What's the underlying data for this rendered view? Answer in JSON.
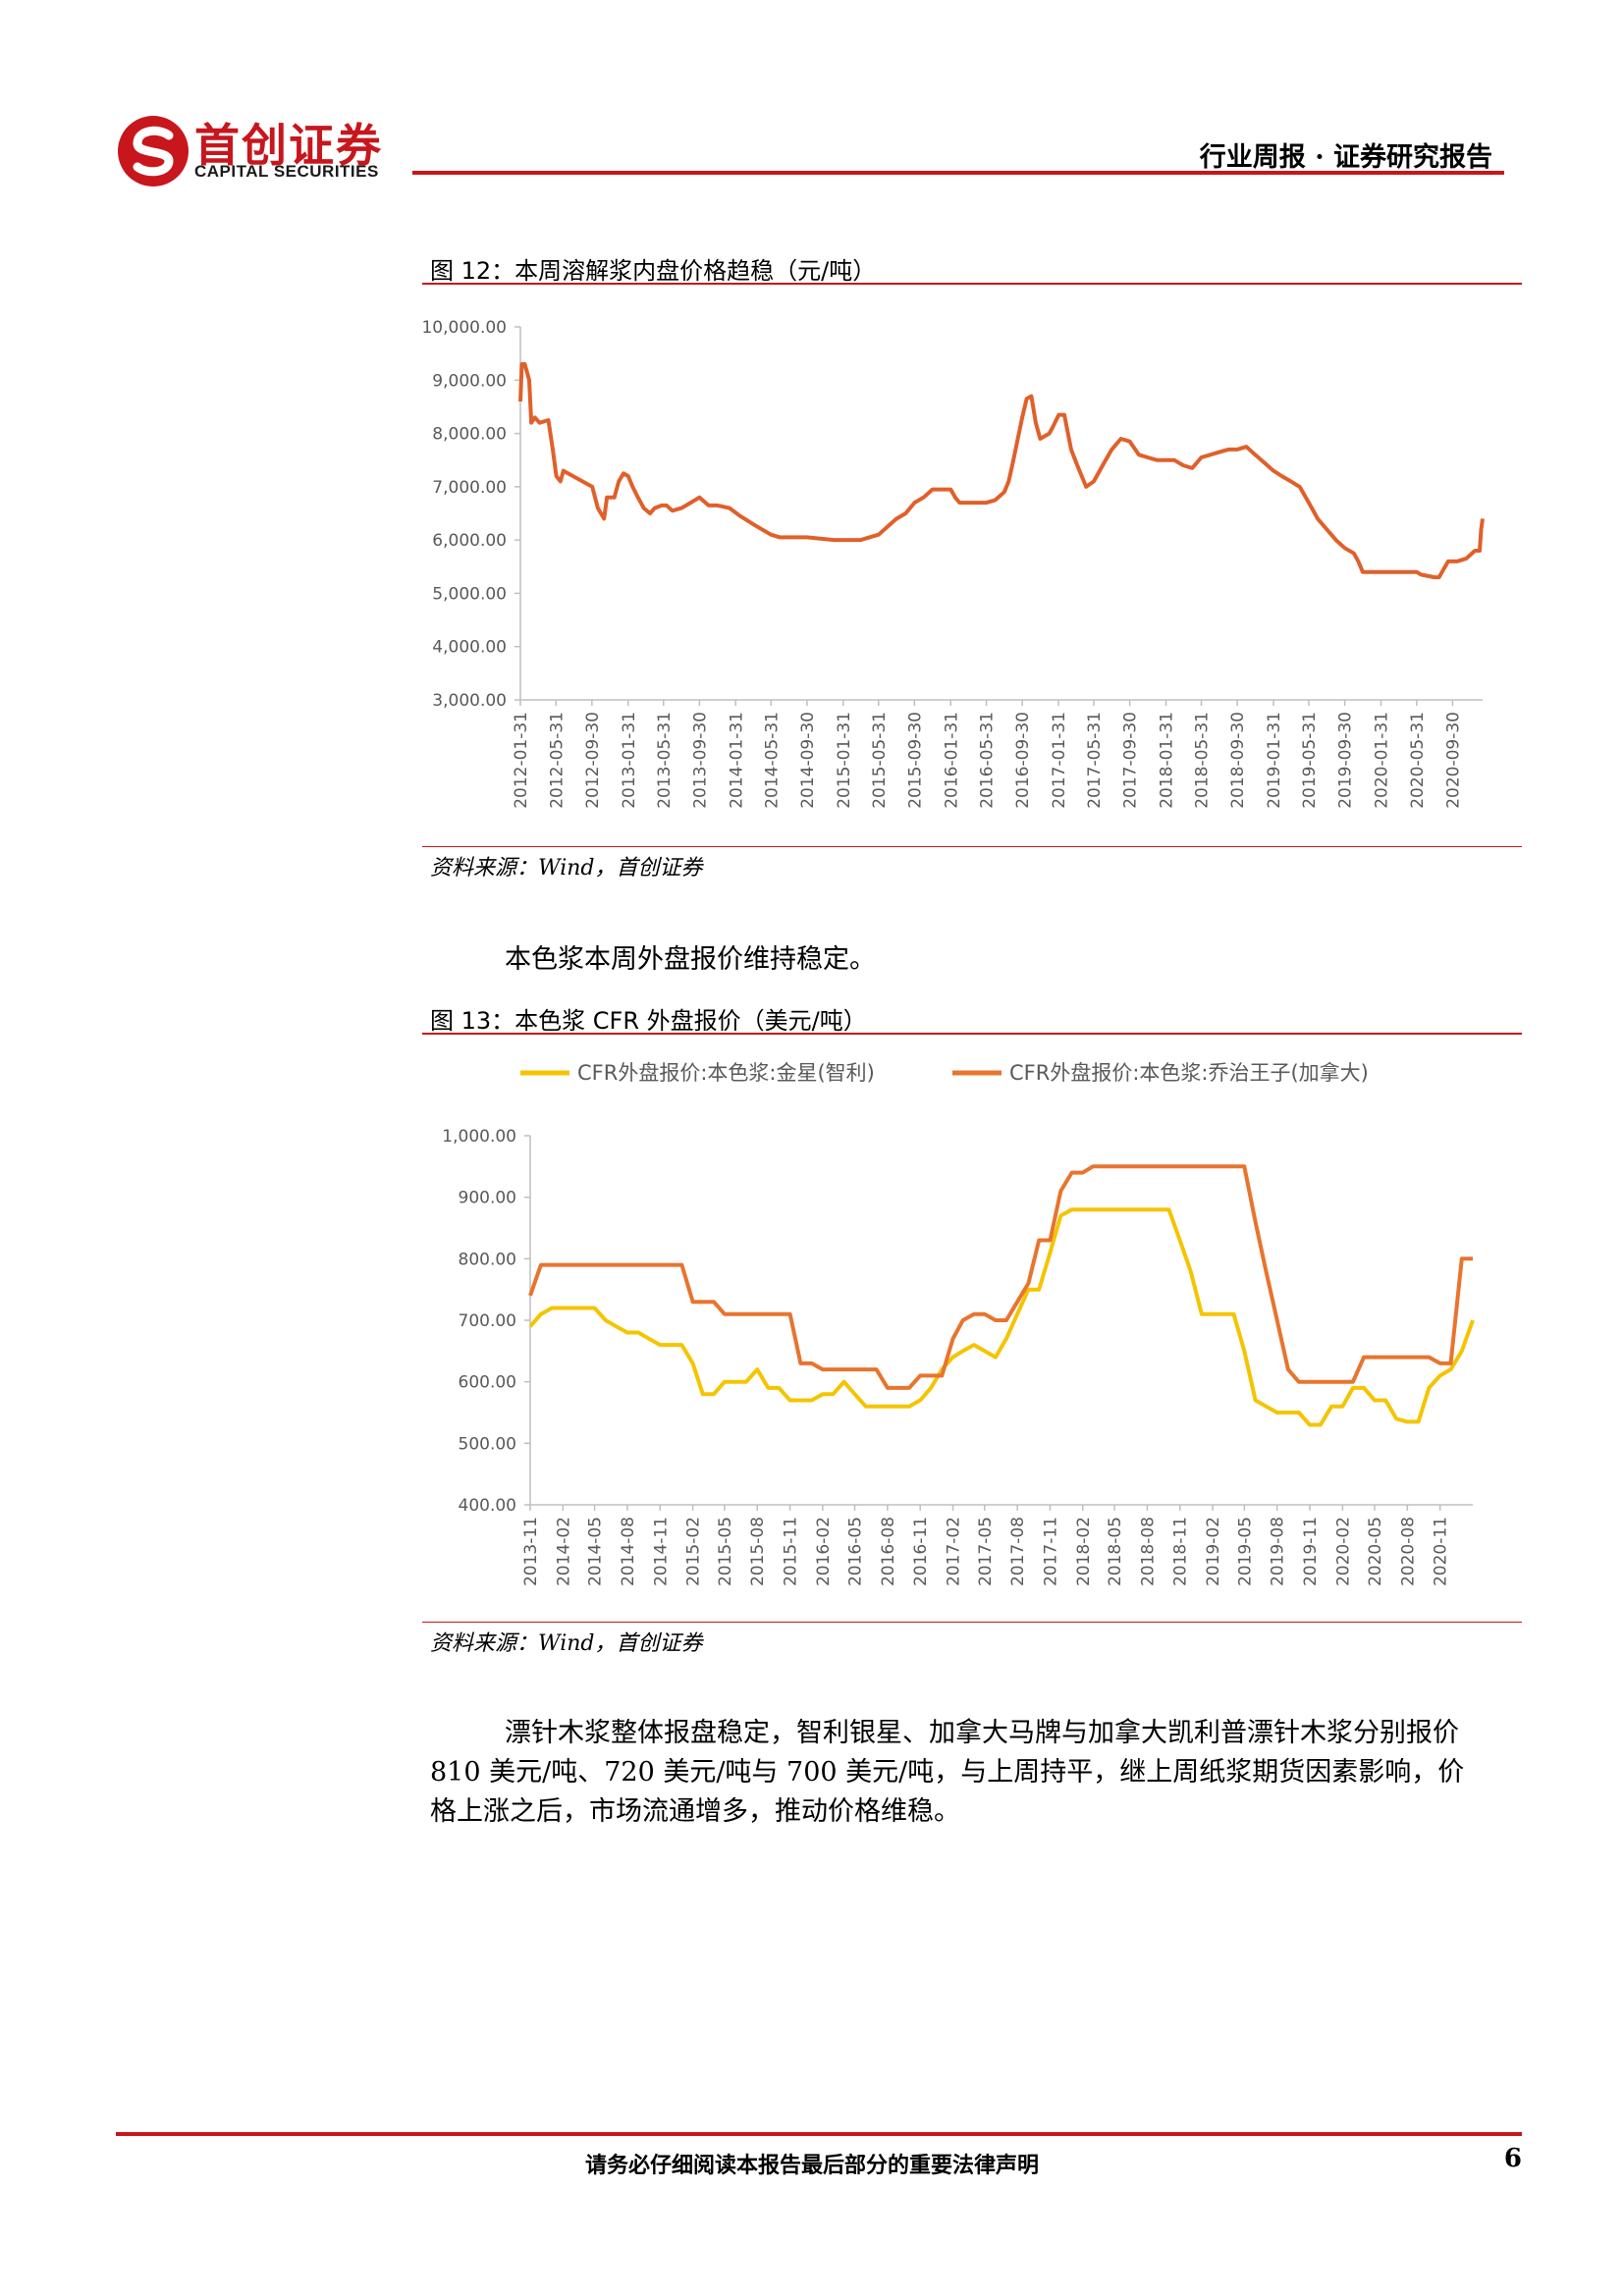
{
  "header": {
    "brand_cn": "首创证券",
    "brand_en": "CAPITAL SECURITIES",
    "report_type": "行业周报 · 证券研究报告",
    "brand_color": "#c8161d"
  },
  "figure12": {
    "title": "图 12：本周溶解浆内盘价格趋稳（元/吨）",
    "source": "资料来源：Wind，首创证券"
  },
  "text1": "本色浆本周外盘报价维持稳定。",
  "figure13": {
    "title": "图 13：本色浆 CFR 外盘报价（美元/吨）",
    "source": "资料来源：Wind，首创证券"
  },
  "paragraph": {
    "line1": "漂针木浆整体报盘稳定，智利银星、加拿大马牌与加拿大凯利普漂针木浆分别报价",
    "line2": "810 美元/吨、720 美元/吨与 700 美元/吨，与上周持平，继上周纸浆期货因素影响，价",
    "line3": "格上涨之后，市场流通增多，推动价格维稳。"
  },
  "footer": {
    "disclaimer": "请务必仔细阅读本报告最后部分的重要法律声明",
    "page": "6"
  },
  "chart_data": [
    {
      "type": "line",
      "title": "",
      "color": "#e0602a",
      "ylim": [
        3000,
        10000
      ],
      "yticks": [
        "10,000.00",
        "9,000.00",
        "8,000.00",
        "7,000.00",
        "6,000.00",
        "5,000.00",
        "4,000.00",
        "3,000.00"
      ],
      "xticks": [
        "2012-01-31",
        "2012-05-31",
        "2012-09-30",
        "2013-01-31",
        "2013-05-31",
        "2013-09-30",
        "2014-01-31",
        "2014-05-31",
        "2014-09-30",
        "2015-01-31",
        "2015-05-31",
        "2015-09-30",
        "2016-01-31",
        "2016-05-31",
        "2016-09-30",
        "2017-01-31",
        "2017-05-31",
        "2017-09-30",
        "2018-01-31",
        "2018-05-31",
        "2018-09-30",
        "2019-01-31",
        "2019-05-31",
        "2019-09-30",
        "2020-01-31",
        "2020-05-31",
        "2020-09-30"
      ],
      "xrange": [
        "2012-01-31",
        "2021-01-10"
      ],
      "series": [
        {
          "x": [
            "2012-01-31",
            "2012-02-05",
            "2012-02-15",
            "2012-03-01",
            "2012-03-08",
            "2012-03-20",
            "2012-04-05",
            "2012-05-05",
            "2012-05-20",
            "2012-06-01",
            "2012-06-15",
            "2012-06-25",
            "2012-10-01",
            "2012-10-20",
            "2012-11-10",
            "2012-11-20",
            "2012-12-15",
            "2012-12-30",
            "2013-01-15",
            "2013-01-31",
            "2013-02-15",
            "2013-03-05",
            "2013-03-25",
            "2013-04-15",
            "2013-05-01",
            "2013-05-25",
            "2013-06-10",
            "2013-06-30",
            "2013-07-31",
            "2013-08-31",
            "2013-09-30",
            "2013-10-31",
            "2013-11-15",
            "2013-11-30",
            "2014-01-10",
            "2014-02-15",
            "2014-03-31",
            "2014-04-30",
            "2014-05-31",
            "2014-06-30",
            "2014-07-31",
            "2014-08-31",
            "2014-09-30",
            "2014-12-31",
            "2015-03-31",
            "2015-04-30",
            "2015-05-31",
            "2015-06-30",
            "2015-07-31",
            "2015-08-31",
            "2015-09-30",
            "2015-10-31",
            "2015-11-30",
            "2016-01-31",
            "2016-02-15",
            "2016-03-01",
            "2016-04-30",
            "2016-05-31",
            "2016-06-30",
            "2016-07-31",
            "2016-08-15",
            "2016-08-31",
            "2016-09-15",
            "2016-09-30",
            "2016-10-15",
            "2016-10-31",
            "2016-11-15",
            "2016-11-30",
            "2016-12-31",
            "2017-01-10",
            "2017-02-01",
            "2017-02-20",
            "2017-03-15",
            "2017-04-05",
            "2017-04-20",
            "2017-05-05",
            "2017-05-31",
            "2017-06-30",
            "2017-07-31",
            "2017-08-31",
            "2017-09-30",
            "2017-10-31",
            "2017-11-30",
            "2017-12-31",
            "2018-01-31",
            "2018-02-28",
            "2018-03-31",
            "2018-04-30",
            "2018-05-31",
            "2018-06-30",
            "2018-07-31",
            "2018-08-31",
            "2018-09-30",
            "2018-10-31",
            "2018-11-30",
            "2018-12-31",
            "2019-01-31",
            "2019-02-28",
            "2019-03-31",
            "2019-04-30",
            "2019-05-31",
            "2019-06-30",
            "2019-07-31",
            "2019-08-31",
            "2019-09-30",
            "2019-10-31",
            "2019-11-15",
            "2019-11-30",
            "2020-01-31",
            "2020-03-31",
            "2020-05-31",
            "2020-06-15",
            "2020-07-31",
            "2020-08-15",
            "2020-09-15",
            "2020-10-15",
            "2020-11-15",
            "2020-12-15",
            "2020-12-31",
            "2021-01-05",
            "2021-01-10"
          ],
          "y": [
            8600,
            9300,
            9300,
            9000,
            8200,
            8300,
            8200,
            8250,
            7700,
            7200,
            7100,
            7300,
            7000,
            6600,
            6400,
            6800,
            6800,
            7100,
            7250,
            7200,
            7000,
            6800,
            6600,
            6500,
            6600,
            6650,
            6650,
            6550,
            6600,
            6700,
            6800,
            6650,
            6650,
            6650,
            6600,
            6450,
            6300,
            6200,
            6100,
            6050,
            6050,
            6050,
            6050,
            6000,
            6000,
            6050,
            6100,
            6250,
            6400,
            6500,
            6700,
            6800,
            6950,
            6950,
            6800,
            6700,
            6700,
            6700,
            6750,
            6900,
            7100,
            7500,
            7900,
            8300,
            8650,
            8700,
            8200,
            7900,
            8000,
            8100,
            8350,
            8350,
            7700,
            7400,
            7200,
            7000,
            7100,
            7400,
            7700,
            7900,
            7850,
            7600,
            7550,
            7500,
            7500,
            7500,
            7400,
            7350,
            7550,
            7600,
            7650,
            7700,
            7700,
            7750,
            7600,
            7450,
            7300,
            7200,
            7100,
            7000,
            6700,
            6400,
            6200,
            6000,
            5850,
            5750,
            5600,
            5400,
            5400,
            5400,
            5400,
            5350,
            5300,
            5300,
            5600,
            5600,
            5650,
            5800,
            5800,
            6200,
            6400
          ]
        }
      ]
    },
    {
      "type": "line",
      "title": "",
      "ylim": [
        400,
        1000
      ],
      "yticks": [
        "1,000.00",
        "900.00",
        "800.00",
        "700.00",
        "600.00",
        "500.00",
        "400.00"
      ],
      "xticks": [
        "2013-11",
        "2014-02",
        "2014-05",
        "2014-08",
        "2014-11",
        "2015-02",
        "2015-05",
        "2015-08",
        "2015-11",
        "2016-02",
        "2016-05",
        "2016-08",
        "2016-11",
        "2017-02",
        "2017-05",
        "2017-08",
        "2017-11",
        "2018-02",
        "2018-05",
        "2018-08",
        "2018-11",
        "2019-02",
        "2019-05",
        "2019-08",
        "2019-11",
        "2020-02",
        "2020-05",
        "2020-08",
        "2020-11"
      ],
      "xrange": [
        "2013-11",
        "2021-02"
      ],
      "legend_position": "top",
      "series": [
        {
          "name": "CFR外盘报价:本色浆:金星(智利)",
          "color": "#f5c400",
          "x": [
            "2013-11",
            "2013-12",
            "2014-01",
            "2014-02",
            "2014-03",
            "2014-04",
            "2014-05",
            "2014-06",
            "2014-07",
            "2014-08",
            "2014-09",
            "2014-10",
            "2014-11",
            "2014-12",
            "2015-01",
            "2015-02",
            "2015-03",
            "2015-04",
            "2015-05",
            "2015-06",
            "2015-07",
            "2015-08",
            "2015-09",
            "2015-10",
            "2015-11",
            "2015-12",
            "2016-01",
            "2016-02",
            "2016-03",
            "2016-04",
            "2016-05",
            "2016-06",
            "2016-07",
            "2016-08",
            "2016-09",
            "2016-10",
            "2016-11",
            "2016-12",
            "2017-01",
            "2017-02",
            "2017-03",
            "2017-04",
            "2017-05",
            "2017-06",
            "2017-07",
            "2017-08",
            "2017-09",
            "2017-10",
            "2017-11",
            "2017-12",
            "2018-01",
            "2018-02",
            "2018-03",
            "2018-04",
            "2018-05",
            "2018-06",
            "2018-07",
            "2018-08",
            "2018-09",
            "2018-10",
            "2018-11",
            "2018-12",
            "2019-01",
            "2019-02",
            "2019-03",
            "2019-04",
            "2019-05",
            "2019-06",
            "2019-07",
            "2019-08",
            "2019-09",
            "2019-10",
            "2019-11",
            "2019-12",
            "2020-01",
            "2020-02",
            "2020-03",
            "2020-04",
            "2020-05",
            "2020-06",
            "2020-07",
            "2020-08",
            "2020-09",
            "2020-10",
            "2020-11",
            "2020-12",
            "2021-01",
            "2021-02"
          ],
          "y": [
            690,
            710,
            720,
            720,
            720,
            720,
            720,
            700,
            690,
            680,
            680,
            670,
            660,
            660,
            660,
            630,
            580,
            580,
            600,
            600,
            600,
            620,
            590,
            590,
            570,
            570,
            570,
            580,
            580,
            600,
            580,
            560,
            560,
            560,
            560,
            560,
            570,
            590,
            620,
            640,
            650,
            660,
            650,
            640,
            670,
            710,
            750,
            750,
            810,
            870,
            880,
            880,
            880,
            880,
            880,
            880,
            880,
            880,
            880,
            880,
            830,
            780,
            710,
            710,
            710,
            710,
            650,
            570,
            560,
            550,
            550,
            550,
            530,
            530,
            560,
            560,
            590,
            590,
            570,
            570,
            540,
            535,
            535,
            590,
            610,
            620,
            650,
            700
          ]
        },
        {
          "name": "CFR外盘报价:本色浆:乔治王子(加拿大)",
          "color": "#e8742e",
          "x": [
            "2013-11",
            "2013-12",
            "2014-01",
            "2014-02",
            "2014-03",
            "2014-04",
            "2014-05",
            "2014-06",
            "2014-07",
            "2014-08",
            "2014-09",
            "2014-10",
            "2014-11",
            "2014-12",
            "2015-01",
            "2015-02",
            "2015-03",
            "2015-04",
            "2015-05",
            "2015-06",
            "2015-07",
            "2015-08",
            "2015-09",
            "2015-10",
            "2015-11",
            "2015-12",
            "2016-01",
            "2016-02",
            "2016-03",
            "2016-04",
            "2016-05",
            "2016-06",
            "2016-07",
            "2016-08",
            "2016-09",
            "2016-10",
            "2016-11",
            "2016-12",
            "2017-01",
            "2017-02",
            "2017-03",
            "2017-04",
            "2017-05",
            "2017-06",
            "2017-07",
            "2017-08",
            "2017-09",
            "2017-10",
            "2017-11",
            "2017-12",
            "2018-01",
            "2018-02",
            "2018-03",
            "2018-06",
            "2018-09",
            "2018-12",
            "2019-03",
            "2019-05",
            "2019-06",
            "2019-07",
            "2019-08",
            "2019-09",
            "2019-10",
            "2019-11",
            "2019-12",
            "2020-01",
            "2020-02",
            "2020-03",
            "2020-04",
            "2020-05",
            "2020-06",
            "2020-07",
            "2020-08",
            "2020-09",
            "2020-10",
            "2020-11",
            "2020-12",
            "2021-01",
            "2021-02"
          ],
          "y": [
            740,
            790,
            790,
            790,
            790,
            790,
            790,
            790,
            790,
            790,
            790,
            790,
            790,
            790,
            790,
            730,
            730,
            730,
            710,
            710,
            710,
            710,
            710,
            710,
            710,
            630,
            630,
            620,
            620,
            620,
            620,
            620,
            620,
            590,
            590,
            590,
            610,
            610,
            610,
            670,
            700,
            710,
            710,
            700,
            700,
            730,
            760,
            830,
            830,
            910,
            940,
            940,
            950,
            950,
            950,
            950,
            950,
            950,
            860,
            780,
            700,
            620,
            600,
            600,
            600,
            600,
            600,
            600,
            640,
            640,
            640,
            640,
            640,
            640,
            640,
            630,
            630,
            800,
            800
          ]
        }
      ]
    }
  ]
}
